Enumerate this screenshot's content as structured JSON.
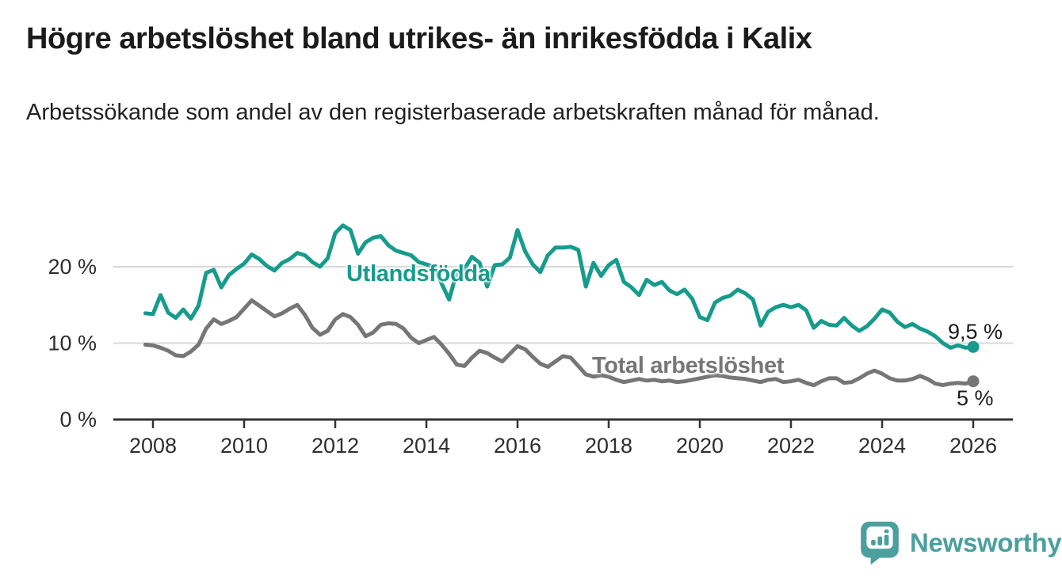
{
  "header": {
    "title": "Högre arbetslöshet bland utrikes- än inrikesfödda i Kalix",
    "subtitle": "Arbetssökande som andel av den registerbaserade arbetskraften månad för månad."
  },
  "chart_data": {
    "type": "line",
    "title": "Högre arbetslöshet bland utrikes- än inrikesfödda i Kalix",
    "xlabel": "",
    "ylabel": "",
    "grid": "horizontal",
    "x_ticks": [
      2008,
      2010,
      2012,
      2014,
      2016,
      2018,
      2020,
      2022,
      2024,
      2026
    ],
    "y_ticks": [
      {
        "value": 0,
        "label": "0 %"
      },
      {
        "value": 10,
        "label": "10 %"
      },
      {
        "value": 20,
        "label": "20 %"
      }
    ],
    "x_range": [
      2007.83,
      2026.9
    ],
    "ylim": [
      0,
      27
    ],
    "colors": {
      "grid": "#d8d8d8",
      "axis": "#333333",
      "tick_text": "#2e2e2e"
    },
    "series": [
      {
        "name": "Utlandsfödda",
        "color": "#169B8C",
        "end_label": "9,5 %",
        "end_value": 9.5,
        "x_start": 2007.8333,
        "x_step": 0.166667,
        "values": [
          13.9,
          13.8,
          16.3,
          14.0,
          13.3,
          14.4,
          13.2,
          14.9,
          19.2,
          19.6,
          17.3,
          18.9,
          19.7,
          20.4,
          21.6,
          21.0,
          20.1,
          19.5,
          20.5,
          21.0,
          21.8,
          21.5,
          20.6,
          20.0,
          21.1,
          24.4,
          25.4,
          24.8,
          21.7,
          23.2,
          23.8,
          24.0,
          22.8,
          22.1,
          21.8,
          21.5,
          20.6,
          20.3,
          20.0,
          17.8,
          15.7,
          19.3,
          19.7,
          21.3,
          20.5,
          17.4,
          20.2,
          20.3,
          21.2,
          24.8,
          22.0,
          20.3,
          19.3,
          21.5,
          22.5,
          22.5,
          22.6,
          22.2,
          17.4,
          20.5,
          18.8,
          20.2,
          20.9,
          18.0,
          17.3,
          16.3,
          18.3,
          17.6,
          18.0,
          16.9,
          16.4,
          17.0,
          15.8,
          13.4,
          13.0,
          15.3,
          15.9,
          16.2,
          17.0,
          16.5,
          15.7,
          12.3,
          14.1,
          14.7,
          15.0,
          14.7,
          15.0,
          14.3,
          12.0,
          12.9,
          12.4,
          12.3,
          13.3,
          12.3,
          11.6,
          12.2,
          13.2,
          14.4,
          14.0,
          12.8,
          12.1,
          12.5,
          11.9,
          11.5,
          10.9,
          10.0,
          9.4,
          9.7,
          9.4,
          9.5
        ]
      },
      {
        "name": "Total arbetslöshet",
        "color": "#767676",
        "end_label": "5 %",
        "end_value": 5.0,
        "x_start": 2007.8333,
        "x_step": 0.166667,
        "values": [
          9.8,
          9.7,
          9.4,
          9.0,
          8.4,
          8.3,
          8.9,
          9.8,
          11.9,
          13.1,
          12.5,
          12.9,
          13.4,
          14.5,
          15.6,
          14.9,
          14.2,
          13.5,
          13.9,
          14.5,
          15.0,
          13.7,
          12.0,
          11.1,
          11.6,
          13.1,
          13.8,
          13.4,
          12.4,
          10.9,
          11.4,
          12.4,
          12.6,
          12.5,
          11.9,
          10.7,
          10.0,
          10.4,
          10.8,
          9.8,
          8.6,
          7.2,
          7.0,
          8.1,
          9.0,
          8.7,
          8.1,
          7.6,
          8.6,
          9.6,
          9.2,
          8.2,
          7.3,
          6.9,
          7.6,
          8.3,
          8.1,
          7.0,
          5.9,
          5.6,
          5.8,
          5.6,
          5.2,
          4.9,
          5.1,
          5.3,
          5.1,
          5.2,
          5.0,
          5.1,
          4.9,
          5.0,
          5.2,
          5.4,
          5.6,
          5.8,
          5.7,
          5.5,
          5.4,
          5.3,
          5.1,
          4.9,
          5.2,
          5.3,
          4.9,
          5.0,
          5.2,
          4.8,
          4.5,
          5.0,
          5.4,
          5.4,
          4.8,
          4.9,
          5.4,
          6.0,
          6.4,
          6.0,
          5.4,
          5.1,
          5.1,
          5.3,
          5.7,
          5.3,
          4.7,
          4.5,
          4.7,
          4.8,
          4.7,
          5.0
        ]
      }
    ]
  },
  "branding": {
    "logo_text": "Newsworthy",
    "logo_color": "#4BA09F",
    "logo_icon": "bar-chart-speech-bubble"
  }
}
